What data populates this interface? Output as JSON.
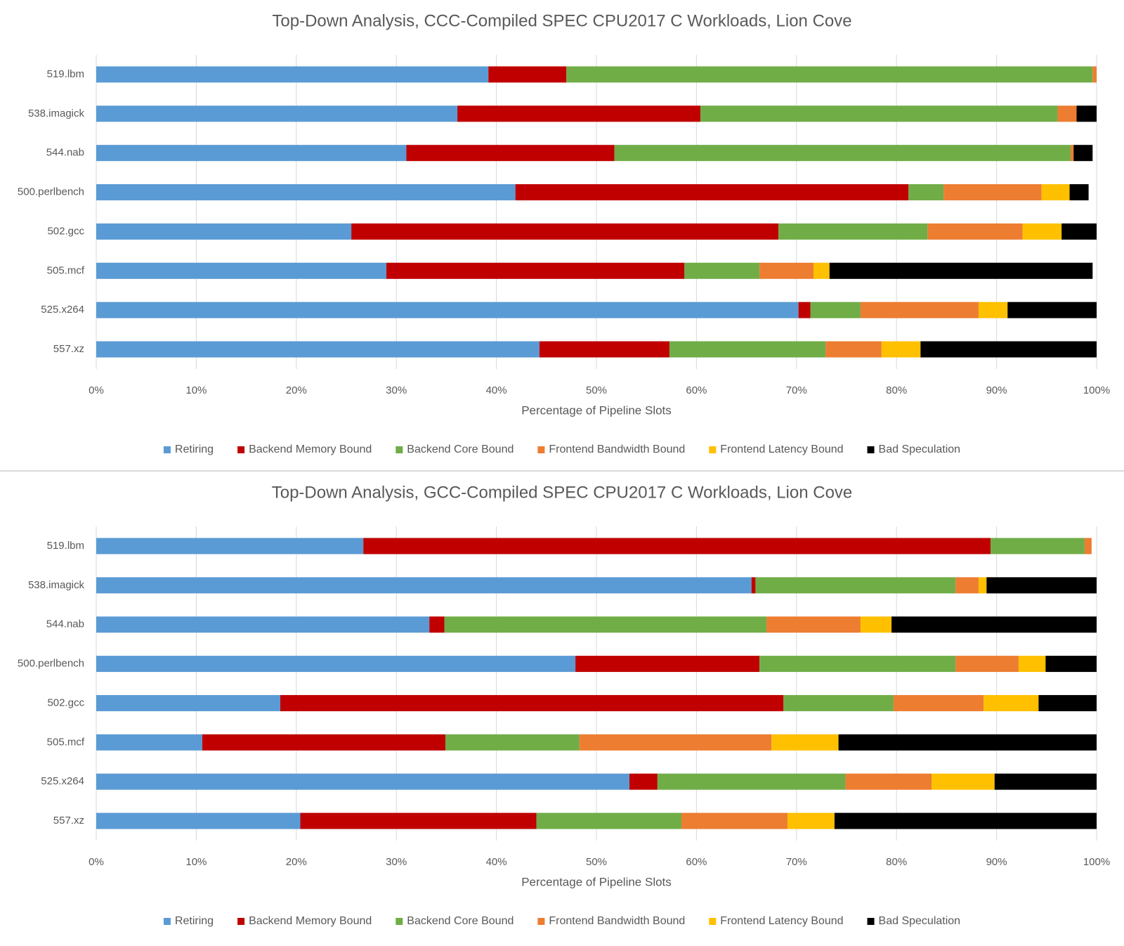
{
  "chart_data": [
    {
      "type": "bar",
      "orientation": "horizontal",
      "stacked": true,
      "title": "Top-Down Analysis, CCC-Compiled SPEC CPU2017 C Workloads, Lion Cove",
      "xlabel": "Percentage of Pipeline Slots",
      "ylabel": "",
      "xlim": [
        0,
        100
      ],
      "x_ticks": [
        "0%",
        "10%",
        "20%",
        "30%",
        "40%",
        "50%",
        "60%",
        "70%",
        "80%",
        "90%",
        "100%"
      ],
      "grid": true,
      "legend_position": "bottom",
      "categories": [
        "519.lbm",
        "538.imagick",
        "544.nab",
        "500.perlbench",
        "502.gcc",
        "505.mcf",
        "525.x264",
        "557.xz"
      ],
      "series": [
        {
          "name": "Retiring",
          "color": "#5b9bd5",
          "values": [
            39.2,
            36.1,
            31.0,
            41.9,
            25.5,
            29.0,
            70.2,
            44.3
          ]
        },
        {
          "name": "Backend Memory Bound",
          "color": "#c00000",
          "values": [
            7.8,
            24.3,
            20.8,
            39.3,
            42.7,
            29.8,
            1.2,
            13.0
          ]
        },
        {
          "name": "Backend Core Bound",
          "color": "#70ad47",
          "values": [
            52.6,
            35.7,
            45.6,
            3.5,
            14.9,
            7.5,
            5.0,
            15.6
          ]
        },
        {
          "name": "Frontend Bandwidth Bound",
          "color": "#ed7d31",
          "values": [
            0.4,
            1.9,
            0.3,
            9.8,
            9.5,
            5.4,
            11.8,
            5.6
          ]
        },
        {
          "name": "Frontend Latency Bound",
          "color": "#ffc000",
          "values": [
            0.0,
            0.0,
            0.0,
            2.8,
            3.9,
            1.6,
            2.9,
            3.9
          ]
        },
        {
          "name": "Bad Speculation",
          "color": "#000000",
          "values": [
            0.0,
            2.0,
            1.9,
            1.9,
            3.5,
            26.3,
            8.9,
            17.6
          ]
        }
      ]
    },
    {
      "type": "bar",
      "orientation": "horizontal",
      "stacked": true,
      "title": "Top-Down Analysis, GCC-Compiled SPEC CPU2017 C Workloads, Lion Cove",
      "xlabel": "Percentage of Pipeline Slots",
      "ylabel": "",
      "xlim": [
        0,
        100
      ],
      "x_ticks": [
        "0%",
        "10%",
        "20%",
        "30%",
        "40%",
        "50%",
        "60%",
        "70%",
        "80%",
        "90%",
        "100%"
      ],
      "grid": true,
      "legend_position": "bottom",
      "categories": [
        "519.lbm",
        "538.imagick",
        "544.nab",
        "500.perlbench",
        "502.gcc",
        "505.mcf",
        "525.x264",
        "557.xz"
      ],
      "series": [
        {
          "name": "Retiring",
          "color": "#5b9bd5",
          "values": [
            26.7,
            65.5,
            33.3,
            47.9,
            18.4,
            10.6,
            53.3,
            20.4
          ]
        },
        {
          "name": "Backend Memory Bound",
          "color": "#c00000",
          "values": [
            62.7,
            0.4,
            1.5,
            18.4,
            50.3,
            24.3,
            2.8,
            23.6
          ]
        },
        {
          "name": "Backend Core Bound",
          "color": "#70ad47",
          "values": [
            9.4,
            20.0,
            32.2,
            19.6,
            11.0,
            13.4,
            18.8,
            14.5
          ]
        },
        {
          "name": "Frontend Bandwidth Bound",
          "color": "#ed7d31",
          "values": [
            0.7,
            2.3,
            9.4,
            6.3,
            9.0,
            19.2,
            8.6,
            10.6
          ]
        },
        {
          "name": "Frontend Latency Bound",
          "color": "#ffc000",
          "values": [
            0.0,
            0.8,
            3.1,
            2.7,
            5.5,
            6.7,
            6.3,
            4.7
          ]
        },
        {
          "name": "Bad Speculation",
          "color": "#000000",
          "values": [
            0.0,
            11.0,
            20.5,
            5.1,
            5.8,
            25.8,
            10.2,
            26.2
          ]
        }
      ]
    }
  ]
}
